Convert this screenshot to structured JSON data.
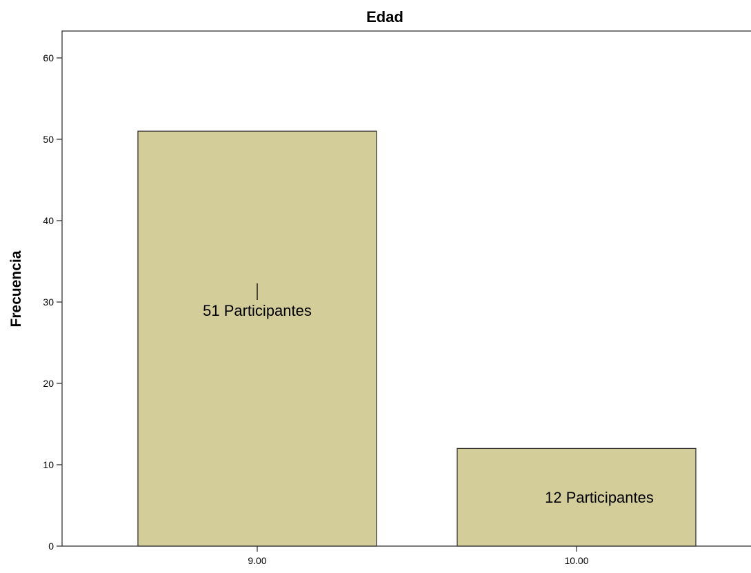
{
  "chart_data": {
    "type": "bar",
    "title": "Edad",
    "xlabel": "",
    "ylabel": "Frecuencia",
    "categories": [
      "9.00",
      "10.00"
    ],
    "values": [
      51,
      12
    ],
    "ylim": [
      0,
      63
    ],
    "yticks": [
      0,
      10,
      20,
      30,
      40,
      50,
      60
    ],
    "grid": false,
    "legend": "none",
    "annotations": [
      {
        "category": "9.00",
        "text": "51 Participantes",
        "y": 29
      },
      {
        "category": "10.00",
        "text": "12 Participantes",
        "y": 6
      }
    ],
    "colors": {
      "bar_fill": "#D3CE99",
      "bar_stroke": "#333333",
      "axis": "#333333",
      "background": "#ffffff"
    }
  }
}
